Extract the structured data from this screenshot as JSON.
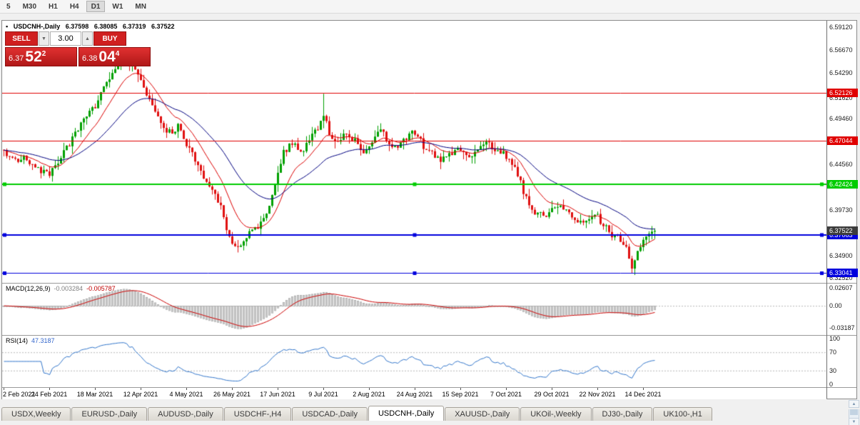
{
  "toolbar": {
    "periods": [
      {
        "label": "5",
        "active": false
      },
      {
        "label": "M30",
        "active": false
      },
      {
        "label": "H1",
        "active": false
      },
      {
        "label": "H4",
        "active": false
      },
      {
        "label": "D1",
        "active": true
      },
      {
        "label": "W1",
        "active": false
      },
      {
        "label": "MN",
        "active": false
      }
    ]
  },
  "chart_header": {
    "marker": "▪",
    "symbol": "USDCNH-,Daily",
    "open": "6.37598",
    "high": "6.38085",
    "low": "6.37319",
    "close": "6.37522"
  },
  "trade_panel": {
    "sell_label": "SELL",
    "buy_label": "BUY",
    "volume": "3.00",
    "sell_price": {
      "base": "6.37",
      "big": "52",
      "sup": "2"
    },
    "buy_price": {
      "base": "6.38",
      "big": "04",
      "sup": "4"
    }
  },
  "icons": {
    "volume_down": "▼",
    "volume_up": "▲",
    "scroll_up": "▲",
    "scroll_down": "▼"
  },
  "colors": {
    "up": "#00a000",
    "down": "#e01010",
    "axis_text": "#1a1a1a"
  },
  "tabs": {
    "active_index": 5,
    "items": [
      "USDX,Weekly",
      "EURUSD-,Daily",
      "AUDUSD-,Daily",
      "USDCHF-,H4",
      "USDCAD-,Daily",
      "USDCNH-,Daily",
      "XAUUSD-,Daily",
      "UKOil-,Weekly",
      "DJ30-,Daily",
      "UK100-,H1"
    ]
  },
  "chart_data": {
    "type": "candlestick",
    "symbol": "USDCNH-",
    "timeframe": "Daily",
    "ohlc": {
      "open": 6.37598,
      "high": 6.38085,
      "low": 6.37319,
      "close": 6.37522
    },
    "bars": 229,
    "seed": 42,
    "price_scale": {
      "top": 6.598,
      "bottom": 6.32
    },
    "last_close": 6.37522,
    "trend_anchors": [
      [
        0,
        6.46
      ],
      [
        4,
        6.448
      ],
      [
        8,
        6.452
      ],
      [
        12,
        6.44
      ],
      [
        16,
        6.436
      ],
      [
        19,
        6.448
      ],
      [
        22,
        6.462
      ],
      [
        25,
        6.478
      ],
      [
        28,
        6.492
      ],
      [
        31,
        6.503
      ],
      [
        34,
        6.52
      ],
      [
        37,
        6.538
      ],
      [
        40,
        6.552
      ],
      [
        43,
        6.556
      ],
      [
        46,
        6.549
      ],
      [
        49,
        6.53
      ],
      [
        52,
        6.505
      ],
      [
        55,
        6.487
      ],
      [
        58,
        6.48
      ],
      [
        61,
        6.486
      ],
      [
        64,
        6.465
      ],
      [
        67,
        6.45
      ],
      [
        70,
        6.432
      ],
      [
        73,
        6.418
      ],
      [
        76,
        6.4
      ],
      [
        79,
        6.368
      ],
      [
        82,
        6.358
      ],
      [
        85,
        6.368
      ],
      [
        88,
        6.378
      ],
      [
        91,
        6.386
      ],
      [
        94,
        6.41
      ],
      [
        96,
        6.438
      ],
      [
        98,
        6.458
      ],
      [
        101,
        6.468
      ],
      [
        104,
        6.458
      ],
      [
        107,
        6.47
      ],
      [
        110,
        6.486
      ],
      [
        112,
        6.498
      ],
      [
        114,
        6.48
      ],
      [
        117,
        6.466
      ],
      [
        120,
        6.48
      ],
      [
        123,
        6.47
      ],
      [
        126,
        6.46
      ],
      [
        129,
        6.47
      ],
      [
        132,
        6.482
      ],
      [
        135,
        6.47
      ],
      [
        138,
        6.463
      ],
      [
        141,
        6.474
      ],
      [
        144,
        6.48
      ],
      [
        147,
        6.465
      ],
      [
        150,
        6.457
      ],
      [
        153,
        6.45
      ],
      [
        156,
        6.456
      ],
      [
        159,
        6.462
      ],
      [
        162,
        6.452
      ],
      [
        165,
        6.46
      ],
      [
        168,
        6.47
      ],
      [
        171,
        6.463
      ],
      [
        174,
        6.458
      ],
      [
        177,
        6.452
      ],
      [
        180,
        6.433
      ],
      [
        183,
        6.41
      ],
      [
        186,
        6.396
      ],
      [
        189,
        6.39
      ],
      [
        192,
        6.397
      ],
      [
        195,
        6.403
      ],
      [
        198,
        6.392
      ],
      [
        201,
        6.386
      ],
      [
        204,
        6.388
      ],
      [
        207,
        6.394
      ],
      [
        210,
        6.38
      ],
      [
        213,
        6.372
      ],
      [
        216,
        6.365
      ],
      [
        218,
        6.356
      ],
      [
        220,
        6.338
      ],
      [
        222,
        6.356
      ],
      [
        224,
        6.366
      ],
      [
        226,
        6.372
      ],
      [
        228,
        6.3752
      ]
    ],
    "spikes": [
      {
        "bar": 43,
        "high": 6.57
      },
      {
        "bar": 112,
        "high": 6.5205
      },
      {
        "bar": 220,
        "low": 6.3305
      }
    ],
    "moving_averages": [
      {
        "period": 12,
        "color": "#dd0000"
      },
      {
        "period": 34,
        "color": "#000080"
      }
    ],
    "levels": [
      {
        "price": 6.52126,
        "label": "6.52126",
        "color": "#e00000",
        "width": 1,
        "handles": false
      },
      {
        "price": 6.47044,
        "label": "6.47044",
        "color": "#e00000",
        "width": 1,
        "handles": false
      },
      {
        "price": 6.42424,
        "label": "6.42424",
        "color": "#00cc00",
        "width": 2,
        "handles": true
      },
      {
        "price": 6.37063,
        "label": "6.37063",
        "color": "#0000dd",
        "width": 2,
        "handles": true
      },
      {
        "price": 6.33041,
        "label": "6.33041",
        "color": "#0000dd",
        "width": 1,
        "handles": true
      }
    ],
    "current_price": {
      "label": "6.37522",
      "price": 6.37522,
      "badge_color": "#3c3c3c"
    },
    "axis_ticks": [
      [
        "6.59120",
        6.5912
      ],
      [
        "6.56670",
        6.5667
      ],
      [
        "6.54290",
        6.5429
      ],
      [
        "6.51620",
        6.5162
      ],
      [
        "6.49460",
        6.4946
      ],
      [
        "6.44560",
        6.4456
      ],
      [
        "6.39730",
        6.3973
      ],
      [
        "6.34900",
        6.349
      ],
      [
        "6.32520",
        6.3252
      ]
    ],
    "date_axis": [
      {
        "text": "2 Feb 2021",
        "bar": 0
      },
      {
        "text": "24 Feb 2021",
        "bar": 16
      },
      {
        "text": "18 Mar 2021",
        "bar": 32
      },
      {
        "text": "12 Apr 2021",
        "bar": 48
      },
      {
        "text": "4 May 2021",
        "bar": 64
      },
      {
        "text": "26 May 2021",
        "bar": 80
      },
      {
        "text": "17 Jun 2021",
        "bar": 96
      },
      {
        "text": "9 Jul 2021",
        "bar": 112
      },
      {
        "text": "2 Aug 2021",
        "bar": 128
      },
      {
        "text": "24 Aug 2021",
        "bar": 144
      },
      {
        "text": "15 Sep 2021",
        "bar": 160
      },
      {
        "text": "7 Oct 2021",
        "bar": 176
      },
      {
        "text": "29 Oct 2021",
        "bar": 192
      },
      {
        "text": "22 Nov 2021",
        "bar": 208
      },
      {
        "text": "14 Dec 2021",
        "bar": 224
      }
    ],
    "macd": {
      "label": "MACD(12,26,9)",
      "value_main": "-0.003284",
      "value_signal": "-0.005787",
      "hist_color": "#cfcfcf",
      "hist_border": "#9a9a9a",
      "signal_color": "#cc0000",
      "scale": {
        "max": 0.032,
        "min": -0.042
      },
      "ticks": [
        [
          "0.02607",
          0.02607
        ],
        [
          "0.00",
          0
        ],
        [
          "-0.03187",
          -0.03187
        ]
      ]
    },
    "rsi": {
      "label": "RSI(14)",
      "value": "47.3187",
      "color": "#3377cc",
      "guides": [
        70,
        30
      ],
      "ticks": [
        [
          "100",
          100
        ],
        [
          "70",
          70
        ],
        [
          "30",
          30
        ],
        [
          "0",
          0
        ]
      ]
    }
  }
}
